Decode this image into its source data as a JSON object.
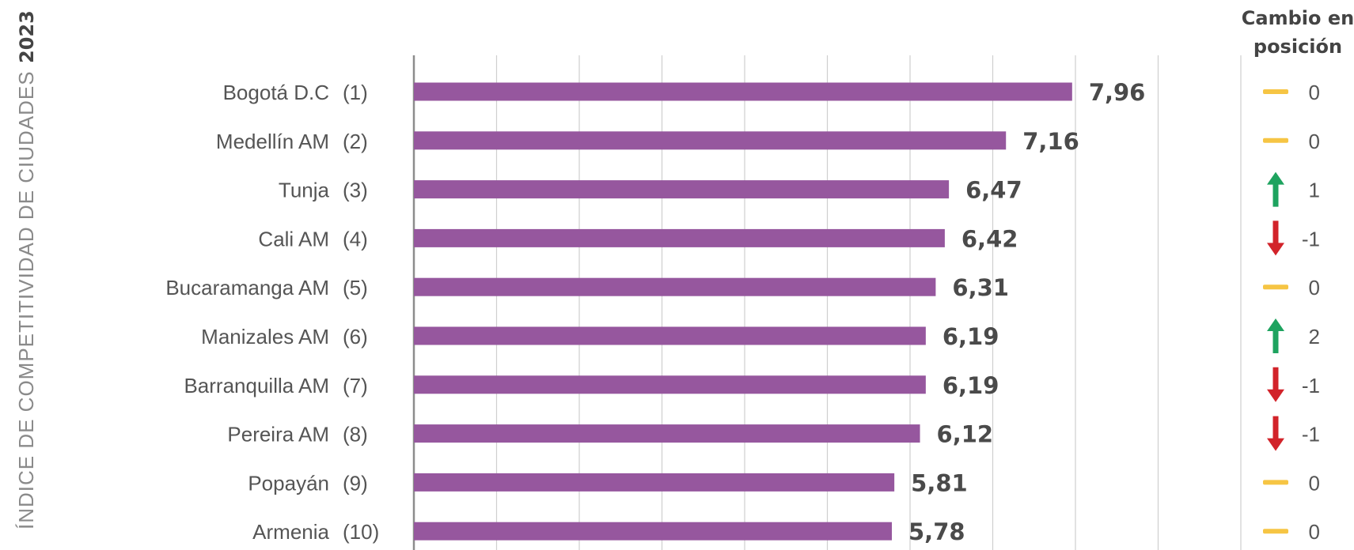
{
  "side_title": "ÍNDICE DE COMPETITIVIDAD DE CIUDADES",
  "side_year": "2023",
  "change_header": [
    "Cambio en",
    "posición"
  ],
  "colors": {
    "bar": "#96579e",
    "grid": "#cfcfcf",
    "axis": "#8c8c8c",
    "neutral": "#f6c544",
    "up": "#1ea35f",
    "down": "#d2232a"
  },
  "chart_data": {
    "type": "bar",
    "orientation": "horizontal",
    "xlim": [
      0,
      10
    ],
    "grid": true,
    "categories": [
      "Bogotá D.C",
      "Medellín AM",
      "Tunja",
      "Cali AM",
      "Bucaramanga AM",
      "Manizales AM",
      "Barranquilla AM",
      "Pereira AM",
      "Popayán",
      "Armenia"
    ],
    "ranks": [
      "(1)",
      "(2)",
      "(3)",
      "(4)",
      "(5)",
      "(6)",
      "(7)",
      "(8)",
      "(9)",
      "(10)"
    ],
    "values": [
      7.96,
      7.16,
      6.47,
      6.42,
      6.31,
      6.19,
      6.19,
      6.12,
      5.81,
      5.78
    ],
    "value_labels": [
      "7,96",
      "7,16",
      "6,47",
      "6,42",
      "6,31",
      "6,19",
      "6,19",
      "6,12",
      "5,81",
      "5,78"
    ],
    "position_change": [
      {
        "value": "0",
        "indicator": "neutral"
      },
      {
        "value": "0",
        "indicator": "neutral"
      },
      {
        "value": "1",
        "indicator": "up"
      },
      {
        "value": "-1",
        "indicator": "down"
      },
      {
        "value": "0",
        "indicator": "neutral"
      },
      {
        "value": "2",
        "indicator": "up"
      },
      {
        "value": "-1",
        "indicator": "down"
      },
      {
        "value": "-1",
        "indicator": "down"
      },
      {
        "value": "0",
        "indicator": "neutral"
      },
      {
        "value": "0",
        "indicator": "neutral"
      }
    ]
  }
}
